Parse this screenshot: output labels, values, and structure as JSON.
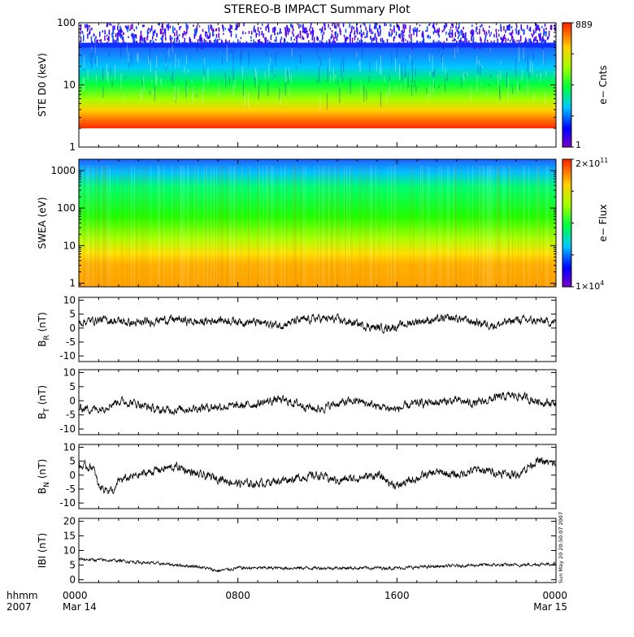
{
  "title": "STEREO-B IMPACT Summary Plot",
  "timestamp": "Sun May 20 20:50:07 2007",
  "x_axis": {
    "row1_label": "hhmm",
    "row2_label": "2007",
    "ticks": [
      {
        "time": "0000",
        "date": "Mar 14"
      },
      {
        "time": "0800",
        "date": ""
      },
      {
        "time": "1600",
        "date": ""
      },
      {
        "time": "0000",
        "date": "Mar 15"
      }
    ],
    "range_hours": [
      0,
      24
    ]
  },
  "chart_data": [
    {
      "type": "heatmap",
      "name": "ste",
      "ylabel": "STE D0 (keV)",
      "yscale": "log",
      "ylim": [
        1,
        100
      ],
      "yticks": [
        "1",
        "10",
        "100"
      ],
      "colorbar": {
        "label": "e− Cnts",
        "max": "889",
        "min": "1"
      },
      "data_floor_keV": 2,
      "description_values": {
        "dense_band_top_keV": 45
      }
    },
    {
      "type": "heatmap",
      "name": "swea",
      "ylabel": "SWEA (eV)",
      "yscale": "log",
      "ylim": [
        0.8,
        2000
      ],
      "yticks": [
        "1",
        "10",
        "100",
        "1000"
      ],
      "colorbar": {
        "label": "e− Flux",
        "max_base": "2×10",
        "max_exp": "11",
        "min_base": "1×10",
        "min_exp": "4"
      }
    },
    {
      "type": "line",
      "name": "br",
      "ylabel_main": "B",
      "ylabel_sub": "R",
      "ylabel_unit": "(nT)",
      "ylim": [
        -12,
        11
      ],
      "yticks": [
        -10,
        -5,
        0,
        5,
        10
      ],
      "anchors": [
        [
          0,
          2
        ],
        [
          1,
          3
        ],
        [
          2,
          2.5
        ],
        [
          3,
          1.5
        ],
        [
          4,
          3
        ],
        [
          5,
          3
        ],
        [
          6,
          2
        ],
        [
          7,
          3
        ],
        [
          8,
          2.5
        ],
        [
          9,
          2
        ],
        [
          10,
          1
        ],
        [
          11,
          2.5
        ],
        [
          12,
          3.5
        ],
        [
          13,
          3
        ],
        [
          14,
          1.5
        ],
        [
          15,
          0
        ],
        [
          16,
          0.5
        ],
        [
          17,
          2.5
        ],
        [
          18,
          3
        ],
        [
          19,
          3.5
        ],
        [
          20,
          2
        ],
        [
          21,
          1
        ],
        [
          22,
          3
        ],
        [
          23,
          2.5
        ],
        [
          24,
          2
        ]
      ]
    },
    {
      "type": "line",
      "name": "bt",
      "ylabel_main": "B",
      "ylabel_sub": "T",
      "ylabel_unit": "(nT)",
      "ylim": [
        -12,
        11
      ],
      "yticks": [
        -10,
        -5,
        0,
        5,
        10
      ],
      "anchors": [
        [
          0,
          -2.5
        ],
        [
          1,
          -3
        ],
        [
          2,
          0
        ],
        [
          3,
          -1
        ],
        [
          4,
          -3.5
        ],
        [
          5,
          -3
        ],
        [
          6,
          -2.5
        ],
        [
          7,
          -2
        ],
        [
          8,
          -2
        ],
        [
          9,
          -1
        ],
        [
          10,
          0.5
        ],
        [
          11,
          -1
        ],
        [
          12,
          -3
        ],
        [
          13,
          -1
        ],
        [
          14,
          0
        ],
        [
          15,
          -2
        ],
        [
          16,
          -3
        ],
        [
          17,
          -1
        ],
        [
          18,
          -0.5
        ],
        [
          19,
          0
        ],
        [
          20,
          -1
        ],
        [
          21,
          1
        ],
        [
          22,
          2
        ],
        [
          23,
          0
        ],
        [
          24,
          -1
        ]
      ]
    },
    {
      "type": "line",
      "name": "bn",
      "ylabel_main": "B",
      "ylabel_sub": "N",
      "ylabel_unit": "(nT)",
      "ylim": [
        -12,
        11
      ],
      "yticks": [
        -10,
        -5,
        0,
        5,
        10
      ],
      "anchors": [
        [
          0,
          3
        ],
        [
          0.7,
          3
        ],
        [
          1,
          -4
        ],
        [
          1.8,
          -6
        ],
        [
          2,
          -2
        ],
        [
          3,
          0
        ],
        [
          4,
          2
        ],
        [
          5,
          3
        ],
        [
          6,
          0
        ],
        [
          7,
          -1
        ],
        [
          8,
          -3
        ],
        [
          9,
          -3
        ],
        [
          10,
          -2
        ],
        [
          11,
          -1
        ],
        [
          12,
          0
        ],
        [
          13,
          -2
        ],
        [
          14,
          -1
        ],
        [
          15,
          0
        ],
        [
          16,
          -4
        ],
        [
          17,
          -1
        ],
        [
          18,
          1
        ],
        [
          19,
          0
        ],
        [
          20,
          2
        ],
        [
          21,
          1
        ],
        [
          22,
          0
        ],
        [
          23,
          5
        ],
        [
          24,
          4
        ]
      ]
    },
    {
      "type": "line",
      "name": "bmag",
      "ylabel_main": "IBI (nT)",
      "ylim": [
        -1,
        21
      ],
      "yticks": [
        0,
        5,
        10,
        15,
        20
      ],
      "anchors": [
        [
          0,
          7
        ],
        [
          2,
          6.5
        ],
        [
          4,
          5.5
        ],
        [
          6,
          4.5
        ],
        [
          7,
          3
        ],
        [
          8,
          4
        ],
        [
          10,
          4
        ],
        [
          12,
          4
        ],
        [
          14,
          4
        ],
        [
          16,
          4
        ],
        [
          18,
          4.5
        ],
        [
          20,
          5
        ],
        [
          22,
          5
        ],
        [
          24,
          5.5
        ]
      ]
    }
  ]
}
